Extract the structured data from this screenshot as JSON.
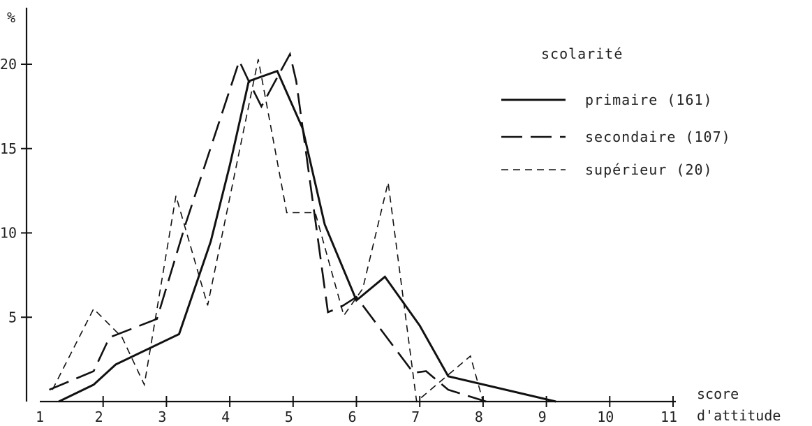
{
  "chart_data": {
    "type": "line",
    "title": "",
    "ylabel": "%",
    "xlabel": [
      "score",
      "d'attitude"
    ],
    "xlim": [
      1,
      11
    ],
    "ylim": [
      0,
      23
    ],
    "x_ticks": [
      "1",
      "2",
      "3",
      "4",
      "5",
      "6",
      "7",
      "8",
      "9",
      "10",
      "11"
    ],
    "y_ticks": [
      {
        "value": 5,
        "label": "5"
      },
      {
        "value": 10,
        "label": "10"
      },
      {
        "value": 15,
        "label": "15"
      },
      {
        "value": 20,
        "label": "20"
      }
    ],
    "legend": {
      "title": "scolarité",
      "position": "top-right"
    },
    "series": [
      {
        "name": "primaire (161)",
        "style": "solid",
        "points": [
          [
            1.3,
            0.0
          ],
          [
            1.85,
            1.0
          ],
          [
            2.2,
            2.2
          ],
          [
            3.2,
            4.0
          ],
          [
            3.7,
            9.5
          ],
          [
            4.0,
            14.0
          ],
          [
            4.3,
            19.0
          ],
          [
            4.75,
            19.6
          ],
          [
            5.15,
            16.2
          ],
          [
            5.5,
            10.5
          ],
          [
            6.0,
            6.0
          ],
          [
            6.45,
            7.4
          ],
          [
            7.0,
            4.5
          ],
          [
            7.45,
            1.5
          ],
          [
            9.15,
            0.0
          ]
        ]
      },
      {
        "name": "secondaire (107)",
        "style": "dashed",
        "points": [
          [
            1.15,
            0.7
          ],
          [
            1.85,
            1.8
          ],
          [
            2.1,
            3.8
          ],
          [
            2.85,
            4.9
          ],
          [
            3.3,
            10.5
          ],
          [
            4.15,
            20.2
          ],
          [
            4.3,
            19.0
          ],
          [
            4.5,
            17.5
          ],
          [
            4.95,
            20.6
          ],
          [
            5.05,
            19.0
          ],
          [
            5.55,
            5.3
          ],
          [
            5.75,
            5.6
          ],
          [
            6.0,
            6.2
          ],
          [
            6.9,
            1.7
          ],
          [
            7.1,
            1.8
          ],
          [
            7.45,
            0.7
          ],
          [
            8.05,
            0.0
          ]
        ]
      },
      {
        "name": "supérieur (20)",
        "style": "dotted",
        "points": [
          [
            1.2,
            0.7
          ],
          [
            1.85,
            5.5
          ],
          [
            2.3,
            3.8
          ],
          [
            2.65,
            1.0
          ],
          [
            3.15,
            12.2
          ],
          [
            3.65,
            5.7
          ],
          [
            4.45,
            20.3
          ],
          [
            4.9,
            11.2
          ],
          [
            5.35,
            11.2
          ],
          [
            5.8,
            5.1
          ],
          [
            6.1,
            6.7
          ],
          [
            6.5,
            13.0
          ],
          [
            6.95,
            0.0
          ],
          [
            7.8,
            2.7
          ],
          [
            8.0,
            0.0
          ]
        ]
      }
    ]
  }
}
